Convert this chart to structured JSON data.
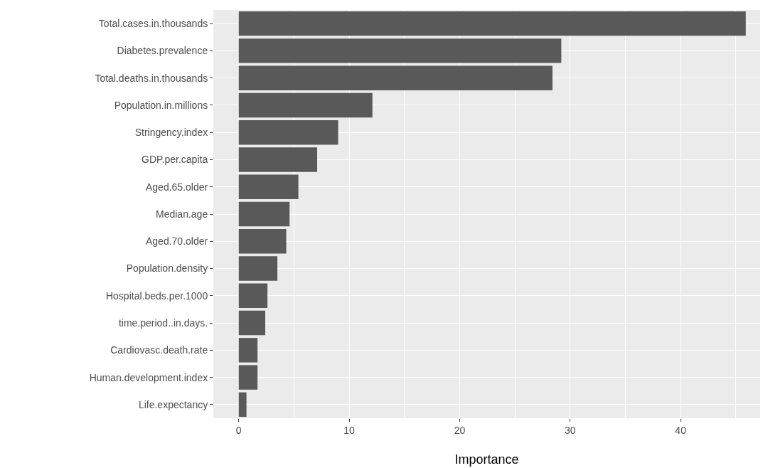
{
  "chart_data": {
    "type": "bar",
    "orientation": "horizontal",
    "xlabel": "Importance",
    "categories": [
      "Total.cases.in.thousands",
      "Diabetes.prevalence",
      "Total.deaths.in.thousands",
      "Population.in.millions",
      "Stringency.index",
      "GDP.per.capita",
      "Aged.65.older",
      "Median.age",
      "Aged.70.older",
      "Population.density",
      "Hospital.beds.per.1000",
      "time.period..in.days.",
      "Cardiovasc.death.rate",
      "Human.development.index",
      "Life.expectancy"
    ],
    "values": [
      45.9,
      29.2,
      28.4,
      12.1,
      9.0,
      7.1,
      5.4,
      4.6,
      4.3,
      3.5,
      2.6,
      2.4,
      1.7,
      1.7,
      0.7
    ],
    "color": "#595959",
    "xlim": [
      -2.3,
      47.2
    ],
    "xticks": [
      0,
      10,
      20,
      30,
      40
    ],
    "grid": true
  }
}
